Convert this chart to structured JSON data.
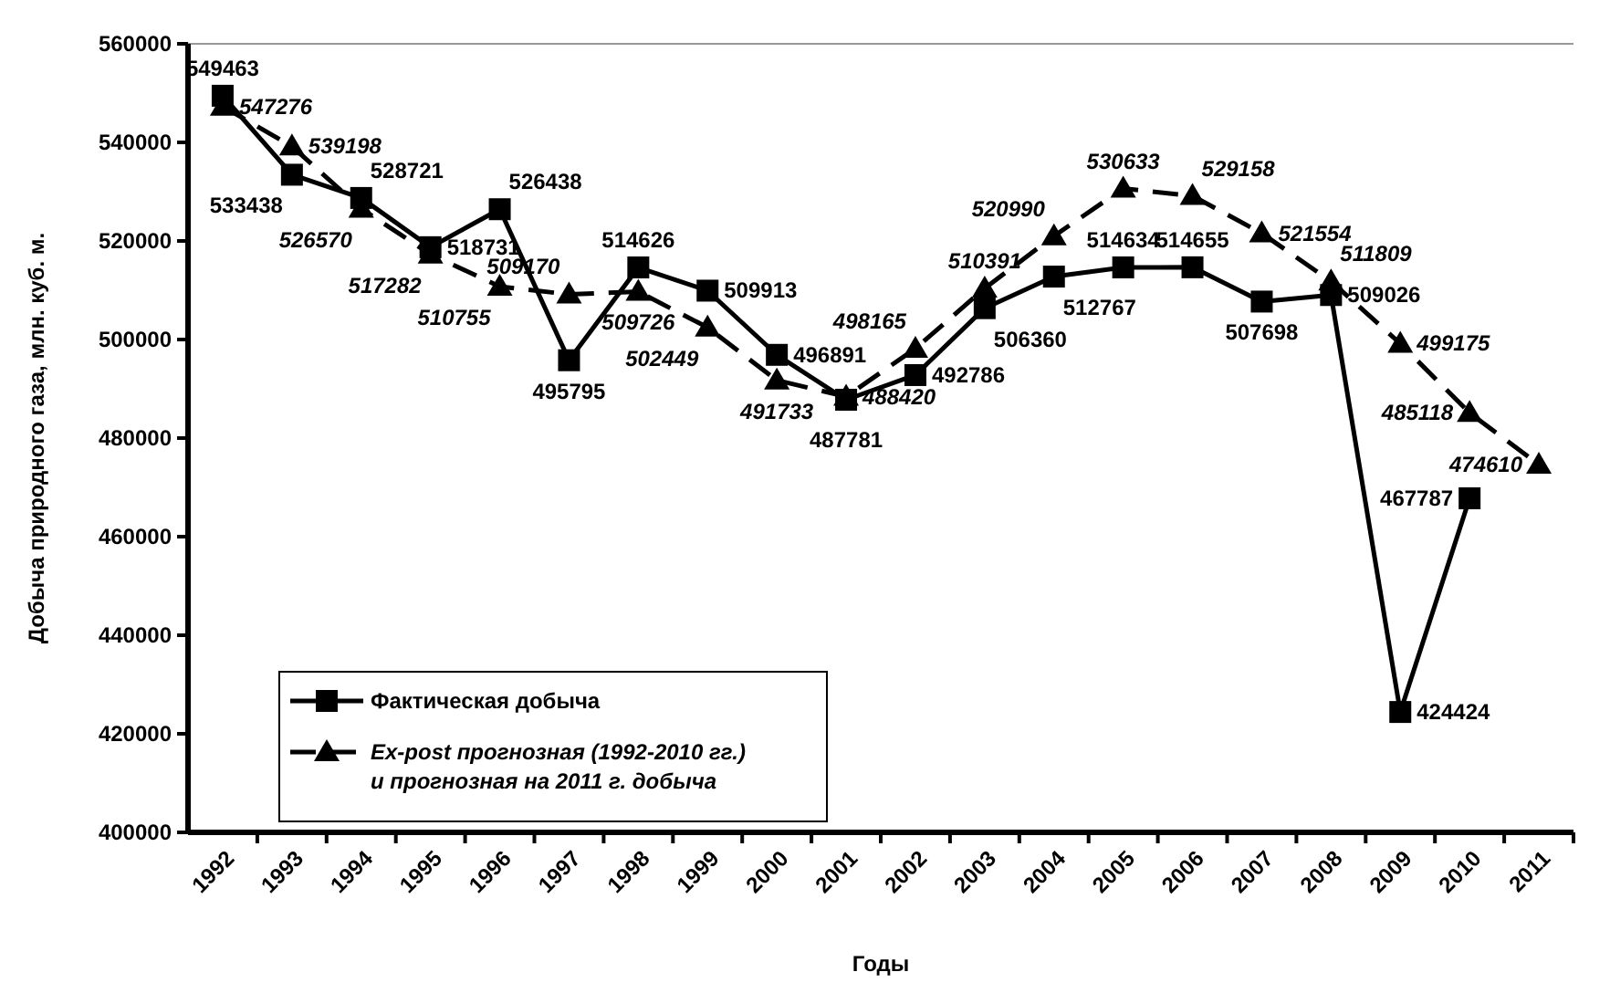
{
  "chart_data": {
    "type": "line",
    "xlabel": "Годы",
    "ylabel": "Добыча природного газа, млн. куб. м.",
    "categories": [
      "1992",
      "1993",
      "1994",
      "1995",
      "1996",
      "1997",
      "1998",
      "1999",
      "2000",
      "2001",
      "2002",
      "2003",
      "2004",
      "2005",
      "2006",
      "2007",
      "2008",
      "2009",
      "2010",
      "2011"
    ],
    "ylim": [
      400000,
      560000
    ],
    "yticks": [
      400000,
      420000,
      440000,
      460000,
      480000,
      500000,
      520000,
      540000,
      560000
    ],
    "grid": false,
    "legend": "bottom left",
    "data_labels": true,
    "series": [
      {
        "name": "Фактическая добыча",
        "color": "#000000",
        "marker": "square",
        "line_style": "solid",
        "values": [
          549463,
          533438,
          528721,
          518731,
          526438,
          495795,
          514626,
          509913,
          496891,
          487781,
          492786,
          506360,
          512767,
          514634,
          514655,
          507698,
          509026,
          424424,
          467787,
          null
        ]
      },
      {
        "name": "Ex-post прогнозная (1992-2010 гг.) и прогнозная на 2011 г. добыча",
        "color": "#000000",
        "marker": "triangle",
        "line_style": "dashed",
        "values": [
          547276,
          539198,
          526570,
          517282,
          510755,
          509170,
          509726,
          502449,
          491733,
          488420,
          498165,
          510391,
          520990,
          530633,
          529158,
          521554,
          511809,
          499175,
          485118,
          474610
        ]
      }
    ]
  }
}
